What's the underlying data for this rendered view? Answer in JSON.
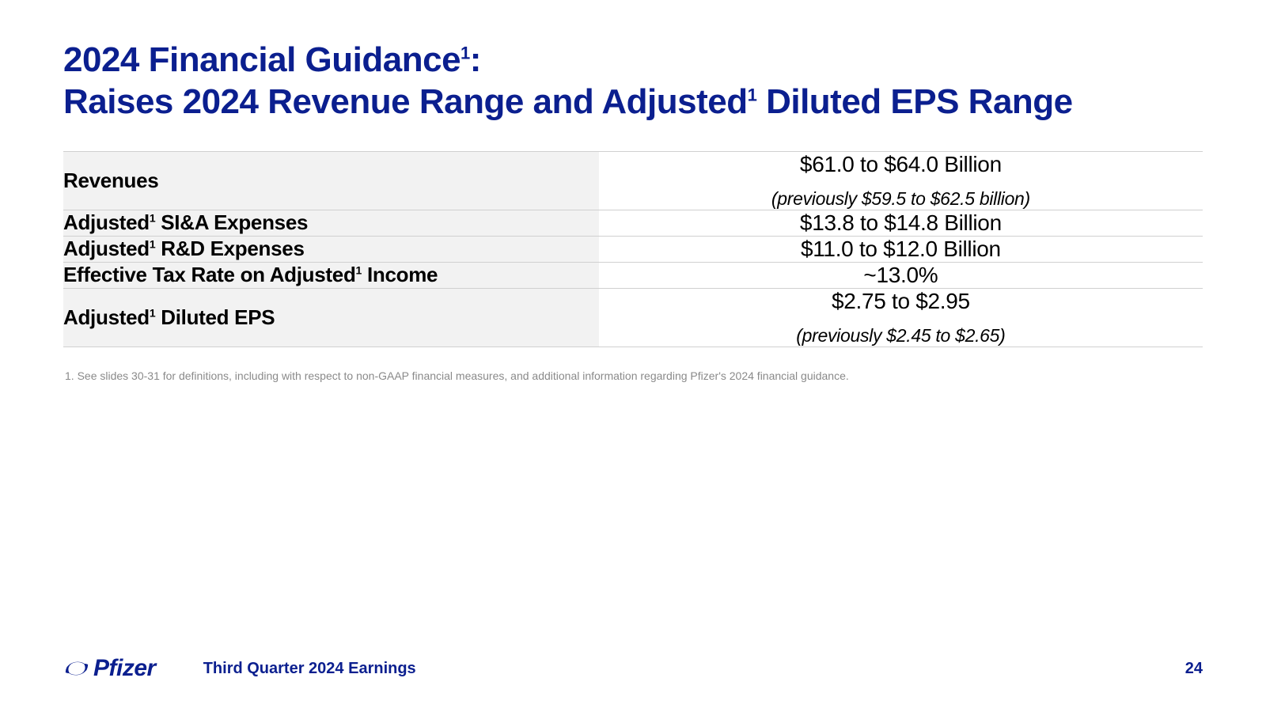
{
  "title": {
    "line1_pre": "2024 Financial Guidance",
    "line1_post": ":",
    "line2_pre": "Raises 2024 Revenue Range and Adjusted",
    "line2_post": " Diluted EPS Range",
    "sup": "1",
    "color": "#0b1f8f",
    "fontsize": 44
  },
  "table": {
    "label_bg": "#f2f2f2",
    "value_bg": "#ffffff",
    "border_color": "#d0d0d0",
    "label_fontsize": 26,
    "value_fontsize": 28,
    "sub_fontsize": 23,
    "rows": [
      {
        "label_pre": "Revenues",
        "label_sup": "",
        "label_post": "",
        "value": "$61.0 to $64.0 Billion",
        "sub": "(previously $59.5 to $62.5 billion)"
      },
      {
        "label_pre": "Adjusted",
        "label_sup": "1",
        "label_post": " SI&A Expenses",
        "value": "$13.8 to $14.8 Billion",
        "sub": ""
      },
      {
        "label_pre": "Adjusted",
        "label_sup": "1",
        "label_post": " R&D Expenses",
        "value": "$11.0 to $12.0 Billion",
        "sub": ""
      },
      {
        "label_pre": "Effective Tax Rate on Adjusted",
        "label_sup": "1",
        "label_post": " Income",
        "value": "~13.0%",
        "sub": ""
      },
      {
        "label_pre": "Adjusted",
        "label_sup": "1",
        "label_post": " Diluted EPS",
        "value": "$2.75 to $2.95",
        "sub": "(previously $2.45 to $2.65)"
      }
    ]
  },
  "footnote": "1. See slides 30-31 for definitions, including with respect to non-GAAP financial measures, and additional information regarding Pfizer's 2024 financial guidance.",
  "footer": {
    "logo_text": "Pfizer",
    "caption": "Third Quarter 2024 Earnings",
    "page": "24",
    "color": "#0b1f8f"
  }
}
